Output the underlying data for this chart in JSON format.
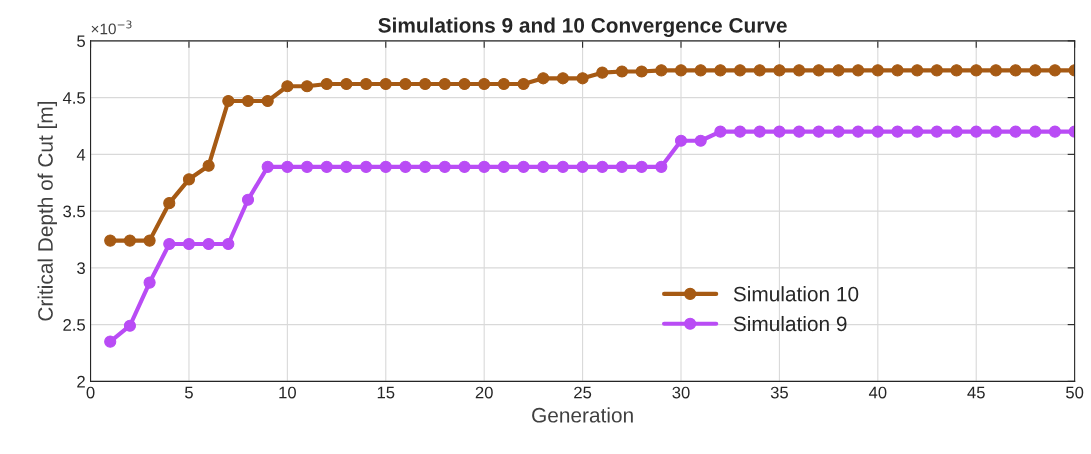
{
  "chart_data": {
    "type": "line",
    "title": "Simulations 9 and 10 Convergence Curve",
    "xlabel": "Generation",
    "ylabel": "Critical Depth of Cut [m]",
    "annotations": [
      "×10$^{−3}$"
    ],
    "x": [
      1,
      2,
      3,
      4,
      5,
      6,
      7,
      8,
      9,
      10,
      11,
      12,
      13,
      14,
      15,
      16,
      17,
      18,
      19,
      20,
      21,
      22,
      23,
      24,
      25,
      26,
      27,
      28,
      29,
      30,
      31,
      32,
      33,
      34,
      35,
      36,
      37,
      38,
      39,
      40,
      41,
      42,
      43,
      44,
      45,
      46,
      47,
      48,
      49,
      50
    ],
    "series": [
      {
        "name": "Simulation 10",
        "color": "#a65a14",
        "values": [
          3.24,
          3.24,
          3.24,
          3.57,
          3.78,
          3.9,
          4.47,
          4.47,
          4.47,
          4.6,
          4.6,
          4.62,
          4.62,
          4.62,
          4.62,
          4.62,
          4.62,
          4.62,
          4.62,
          4.62,
          4.62,
          4.62,
          4.67,
          4.67,
          4.67,
          4.72,
          4.73,
          4.73,
          4.74,
          4.74,
          4.74,
          4.74,
          4.74,
          4.74,
          4.74,
          4.74,
          4.74,
          4.74,
          4.74,
          4.74,
          4.74,
          4.74,
          4.74,
          4.74,
          4.74,
          4.74,
          4.74,
          4.74,
          4.74,
          4.74
        ]
      },
      {
        "name": "Simulation 9",
        "color": "#b94cf5",
        "values": [
          2.35,
          2.49,
          2.87,
          3.21,
          3.21,
          3.21,
          3.21,
          3.6,
          3.89,
          3.89,
          3.89,
          3.89,
          3.89,
          3.89,
          3.89,
          3.89,
          3.89,
          3.89,
          3.89,
          3.89,
          3.89,
          3.89,
          3.89,
          3.89,
          3.89,
          3.89,
          3.89,
          3.89,
          3.89,
          4.12,
          4.12,
          4.2,
          4.2,
          4.2,
          4.2,
          4.2,
          4.2,
          4.2,
          4.2,
          4.2,
          4.2,
          4.2,
          4.2,
          4.2,
          4.2,
          4.2,
          4.2,
          4.2,
          4.2,
          4.2
        ]
      }
    ],
    "xlim": [
      0,
      50
    ],
    "xticks": [
      0,
      5,
      10,
      15,
      20,
      25,
      30,
      35,
      40,
      45,
      50
    ],
    "ylim": [
      2,
      5
    ],
    "yticks": [
      2,
      2.5,
      3,
      3.5,
      4,
      4.5,
      5
    ],
    "grid": true,
    "legend": "bottom right",
    "marker": "circle",
    "line_style": "solid"
  }
}
